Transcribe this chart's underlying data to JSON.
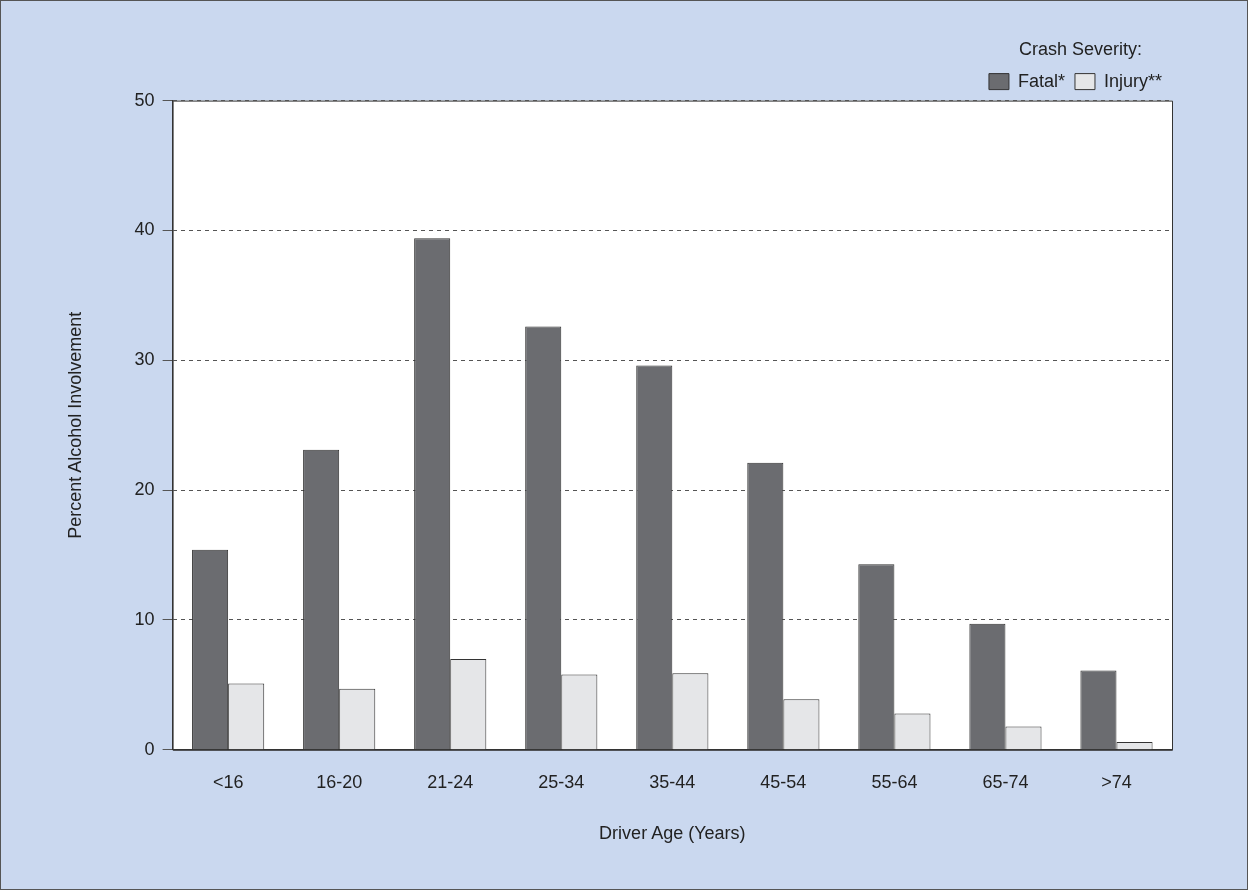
{
  "chart_data": {
    "type": "bar",
    "xlabel": "Driver Age (Years)",
    "ylabel": "Percent Alcohol Involvement",
    "legend_title": "Crash Severity:",
    "categories": [
      "<16",
      "16-20",
      "21-24",
      "25-34",
      "35-44",
      "45-54",
      "55-64",
      "65-74",
      ">74"
    ],
    "series": [
      {
        "name": "Fatal*",
        "color": "#6b6c70",
        "values": [
          15.4,
          23.1,
          39.4,
          32.6,
          29.6,
          22.1,
          14.3,
          9.7,
          6.1
        ]
      },
      {
        "name": "Injury**",
        "color": "#e5e6e8",
        "values": [
          5.1,
          4.7,
          7.0,
          5.8,
          5.9,
          3.9,
          2.8,
          1.8,
          0.6
        ]
      }
    ],
    "ylim": [
      0,
      50
    ],
    "yticks": [
      0,
      10,
      20,
      30,
      40,
      50
    ],
    "grid": "y",
    "legend": "top right"
  }
}
